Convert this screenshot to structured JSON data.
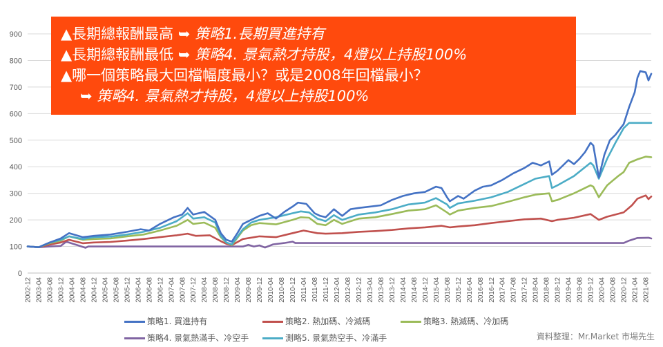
{
  "banner": {
    "line1_lead": "▲長期總報酬最高 ➥ ",
    "line1_hl": "策略1.長期買進持有",
    "line2_lead": "▲長期總報酬最低 ➥ ",
    "line2_hl": "策略4. 景氣熱才持股，4燈以上持股100%",
    "line3": "▲哪一個策略最大回檔幅度最小？或是2008年回檔最小？",
    "line4_arrow": "➥ ",
    "line4_hl": "策略4. 景氣熱才持股，4燈以上持股100%"
  },
  "source": "資料整理：Mr.Market 市場先生",
  "chart_data": {
    "type": "line",
    "ylim": [
      0,
      900
    ],
    "yticks": [
      0,
      100,
      200,
      300,
      400,
      500,
      600,
      700,
      800,
      900
    ],
    "grid": true,
    "xlim": [
      "2002-12",
      "2021-10"
    ],
    "x_tick_labels": [
      "2002-12",
      "2003-04",
      "2003-08",
      "2003-12",
      "2004-04",
      "2004-08",
      "2004-12",
      "2005-04",
      "2005-08",
      "2005-12",
      "2006-04",
      "2006-08",
      "2006-12",
      "2007-04",
      "2007-08",
      "2007-12",
      "2008-04",
      "2008-08",
      "2008-12",
      "2009-04",
      "2009-08",
      "2009-12",
      "2010-04",
      "2010-08",
      "2010-12",
      "2011-04",
      "2011-08",
      "2011-12",
      "2012-04",
      "2012-08",
      "2012-12",
      "2013-04",
      "2013-08",
      "2013-12",
      "2014-04",
      "2014-08",
      "2014-12",
      "2015-04",
      "2015-08",
      "2015-12",
      "2016-04",
      "2016-08",
      "2016-12",
      "2017-04",
      "2017-08",
      "2017-12",
      "2018-04",
      "2018-08",
      "2018-12",
      "2019-04",
      "2019-08",
      "2019-12",
      "2020-04",
      "2020-08",
      "2020-12",
      "2021-04",
      "2021-08"
    ],
    "legend_position": "bottom",
    "series": [
      {
        "name": "策略1. 買進持有",
        "color": "#4472C4",
        "points": [
          [
            "2002-12",
            100
          ],
          [
            "2003-04",
            97
          ],
          [
            "2003-08",
            115
          ],
          [
            "2003-12",
            130
          ],
          [
            "2004-03",
            150
          ],
          [
            "2004-08",
            135
          ],
          [
            "2004-12",
            140
          ],
          [
            "2005-06",
            145
          ],
          [
            "2005-12",
            155
          ],
          [
            "2006-05",
            165
          ],
          [
            "2006-08",
            160
          ],
          [
            "2006-12",
            185
          ],
          [
            "2007-05",
            210
          ],
          [
            "2007-08",
            220
          ],
          [
            "2007-10",
            245
          ],
          [
            "2007-12",
            220
          ],
          [
            "2008-04",
            230
          ],
          [
            "2008-08",
            200
          ],
          [
            "2008-10",
            150
          ],
          [
            "2008-12",
            125
          ],
          [
            "2009-02",
            118
          ],
          [
            "2009-04",
            150
          ],
          [
            "2009-06",
            185
          ],
          [
            "2009-09",
            200
          ],
          [
            "2009-12",
            215
          ],
          [
            "2010-03",
            225
          ],
          [
            "2010-06",
            205
          ],
          [
            "2010-09",
            230
          ],
          [
            "2010-12",
            250
          ],
          [
            "2011-02",
            265
          ],
          [
            "2011-05",
            260
          ],
          [
            "2011-08",
            225
          ],
          [
            "2011-10",
            215
          ],
          [
            "2011-12",
            210
          ],
          [
            "2012-03",
            240
          ],
          [
            "2012-06",
            215
          ],
          [
            "2012-09",
            240
          ],
          [
            "2012-12",
            245
          ],
          [
            "2013-04",
            250
          ],
          [
            "2013-08",
            255
          ],
          [
            "2013-12",
            275
          ],
          [
            "2014-04",
            290
          ],
          [
            "2014-08",
            300
          ],
          [
            "2014-12",
            305
          ],
          [
            "2015-04",
            325
          ],
          [
            "2015-06",
            320
          ],
          [
            "2015-08",
            285
          ],
          [
            "2015-09",
            270
          ],
          [
            "2015-12",
            290
          ],
          [
            "2016-02",
            280
          ],
          [
            "2016-06",
            310
          ],
          [
            "2016-09",
            325
          ],
          [
            "2016-12",
            330
          ],
          [
            "2017-04",
            350
          ],
          [
            "2017-08",
            375
          ],
          [
            "2017-12",
            395
          ],
          [
            "2018-03",
            415
          ],
          [
            "2018-06",
            405
          ],
          [
            "2018-09",
            420
          ],
          [
            "2018-10",
            370
          ],
          [
            "2018-12",
            385
          ],
          [
            "2019-04",
            425
          ],
          [
            "2019-06",
            410
          ],
          [
            "2019-08",
            430
          ],
          [
            "2019-10",
            455
          ],
          [
            "2019-12",
            490
          ],
          [
            "2020-01",
            480
          ],
          [
            "2020-03",
            360
          ],
          [
            "2020-05",
            445
          ],
          [
            "2020-07",
            500
          ],
          [
            "2020-09",
            520
          ],
          [
            "2020-12",
            560
          ],
          [
            "2021-02",
            625
          ],
          [
            "2021-04",
            680
          ],
          [
            "2021-05",
            735
          ],
          [
            "2021-06",
            760
          ],
          [
            "2021-08",
            755
          ],
          [
            "2021-09",
            725
          ],
          [
            "2021-10",
            750
          ]
        ]
      },
      {
        "name": "策略2. 熱加碼、冷減碼",
        "color": "#C0504D",
        "points": [
          [
            "2002-12",
            100
          ],
          [
            "2003-04",
            97
          ],
          [
            "2003-08",
            107
          ],
          [
            "2003-12",
            115
          ],
          [
            "2004-03",
            125
          ],
          [
            "2004-08",
            112
          ],
          [
            "2004-12",
            115
          ],
          [
            "2005-06",
            117
          ],
          [
            "2005-12",
            122
          ],
          [
            "2006-06",
            128
          ],
          [
            "2006-12",
            135
          ],
          [
            "2007-06",
            142
          ],
          [
            "2007-10",
            148
          ],
          [
            "2008-01",
            140
          ],
          [
            "2008-06",
            142
          ],
          [
            "2008-10",
            120
          ],
          [
            "2008-12",
            110
          ],
          [
            "2009-02",
            105
          ],
          [
            "2009-06",
            128
          ],
          [
            "2009-12",
            138
          ],
          [
            "2010-06",
            135
          ],
          [
            "2010-12",
            150
          ],
          [
            "2011-04",
            160
          ],
          [
            "2011-09",
            150
          ],
          [
            "2011-12",
            148
          ],
          [
            "2012-06",
            150
          ],
          [
            "2012-12",
            155
          ],
          [
            "2013-06",
            158
          ],
          [
            "2013-12",
            162
          ],
          [
            "2014-06",
            168
          ],
          [
            "2014-12",
            172
          ],
          [
            "2015-06",
            178
          ],
          [
            "2015-09",
            172
          ],
          [
            "2015-12",
            175
          ],
          [
            "2016-06",
            180
          ],
          [
            "2016-12",
            188
          ],
          [
            "2017-06",
            195
          ],
          [
            "2017-12",
            202
          ],
          [
            "2018-06",
            205
          ],
          [
            "2018-10",
            195
          ],
          [
            "2018-12",
            200
          ],
          [
            "2019-06",
            208
          ],
          [
            "2019-12",
            222
          ],
          [
            "2020-03",
            200
          ],
          [
            "2020-06",
            212
          ],
          [
            "2020-12",
            228
          ],
          [
            "2021-03",
            255
          ],
          [
            "2021-05",
            280
          ],
          [
            "2021-08",
            292
          ],
          [
            "2021-09",
            278
          ],
          [
            "2021-10",
            288
          ]
        ]
      },
      {
        "name": "策略3. 熱減碼、冷加碼",
        "color": "#9BBB59",
        "points": [
          [
            "2002-12",
            100
          ],
          [
            "2003-04",
            97
          ],
          [
            "2003-08",
            112
          ],
          [
            "2003-12",
            122
          ],
          [
            "2004-03",
            138
          ],
          [
            "2004-08",
            125
          ],
          [
            "2004-12",
            128
          ],
          [
            "2005-06",
            130
          ],
          [
            "2005-12",
            138
          ],
          [
            "2006-06",
            145
          ],
          [
            "2006-12",
            160
          ],
          [
            "2007-06",
            178
          ],
          [
            "2007-10",
            200
          ],
          [
            "2007-12",
            185
          ],
          [
            "2008-04",
            190
          ],
          [
            "2008-08",
            170
          ],
          [
            "2008-10",
            135
          ],
          [
            "2008-12",
            115
          ],
          [
            "2009-02",
            105
          ],
          [
            "2009-06",
            160
          ],
          [
            "2009-09",
            180
          ],
          [
            "2009-12",
            188
          ],
          [
            "2010-06",
            183
          ],
          [
            "2010-12",
            200
          ],
          [
            "2011-03",
            210
          ],
          [
            "2011-06",
            208
          ],
          [
            "2011-09",
            185
          ],
          [
            "2011-12",
            180
          ],
          [
            "2012-03",
            200
          ],
          [
            "2012-06",
            185
          ],
          [
            "2012-12",
            205
          ],
          [
            "2013-06",
            210
          ],
          [
            "2013-12",
            222
          ],
          [
            "2014-06",
            235
          ],
          [
            "2014-12",
            240
          ],
          [
            "2015-04",
            255
          ],
          [
            "2015-08",
            228
          ],
          [
            "2015-09",
            220
          ],
          [
            "2015-12",
            235
          ],
          [
            "2016-06",
            245
          ],
          [
            "2016-12",
            252
          ],
          [
            "2017-06",
            268
          ],
          [
            "2017-12",
            285
          ],
          [
            "2018-04",
            295
          ],
          [
            "2018-09",
            300
          ],
          [
            "2018-10",
            270
          ],
          [
            "2018-12",
            275
          ],
          [
            "2019-06",
            300
          ],
          [
            "2019-12",
            330
          ],
          [
            "2020-01",
            325
          ],
          [
            "2020-03",
            285
          ],
          [
            "2020-06",
            330
          ],
          [
            "2020-10",
            365
          ],
          [
            "2020-12",
            380
          ],
          [
            "2021-02",
            415
          ],
          [
            "2021-05",
            428
          ],
          [
            "2021-08",
            438
          ],
          [
            "2021-10",
            436
          ]
        ]
      },
      {
        "name": "策略4. 景氣熱滿手、冷空手",
        "color": "#8064A2",
        "points": [
          [
            "2002-12",
            100
          ],
          [
            "2003-04",
            97
          ],
          [
            "2003-08",
            100
          ],
          [
            "2003-12",
            102
          ],
          [
            "2004-02",
            118
          ],
          [
            "2004-06",
            105
          ],
          [
            "2004-09",
            95
          ],
          [
            "2004-10",
            100
          ],
          [
            "2009-06",
            100
          ],
          [
            "2009-08",
            106
          ],
          [
            "2009-10",
            100
          ],
          [
            "2009-12",
            104
          ],
          [
            "2010-02",
            96
          ],
          [
            "2010-05",
            108
          ],
          [
            "2010-09",
            113
          ],
          [
            "2010-12",
            118
          ],
          [
            "2011-01",
            113
          ],
          [
            "2020-12",
            113
          ],
          [
            "2021-02",
            122
          ],
          [
            "2021-05",
            132
          ],
          [
            "2021-09",
            133
          ],
          [
            "2021-10",
            130
          ]
        ]
      },
      {
        "name": "測略5. 景氣熱空手、冷滿手",
        "color": "#4BACC6",
        "points": [
          [
            "2002-12",
            100
          ],
          [
            "2003-04",
            97
          ],
          [
            "2003-08",
            115
          ],
          [
            "2003-12",
            125
          ],
          [
            "2004-03",
            138
          ],
          [
            "2004-08",
            128
          ],
          [
            "2004-12",
            135
          ],
          [
            "2005-06",
            137
          ],
          [
            "2005-12",
            145
          ],
          [
            "2006-06",
            155
          ],
          [
            "2006-12",
            170
          ],
          [
            "2007-06",
            195
          ],
          [
            "2007-10",
            225
          ],
          [
            "2007-12",
            205
          ],
          [
            "2008-04",
            210
          ],
          [
            "2008-08",
            190
          ],
          [
            "2008-10",
            140
          ],
          [
            "2008-12",
            115
          ],
          [
            "2009-02",
            108
          ],
          [
            "2009-06",
            165
          ],
          [
            "2009-09",
            190
          ],
          [
            "2009-12",
            200
          ],
          [
            "2010-06",
            210
          ],
          [
            "2010-12",
            225
          ],
          [
            "2011-03",
            232
          ],
          [
            "2011-06",
            228
          ],
          [
            "2011-09",
            205
          ],
          [
            "2011-12",
            195
          ],
          [
            "2012-03",
            218
          ],
          [
            "2012-06",
            200
          ],
          [
            "2012-12",
            220
          ],
          [
            "2013-06",
            228
          ],
          [
            "2013-12",
            240
          ],
          [
            "2014-06",
            258
          ],
          [
            "2014-12",
            265
          ],
          [
            "2015-04",
            282
          ],
          [
            "2015-08",
            258
          ],
          [
            "2015-09",
            245
          ],
          [
            "2015-12",
            262
          ],
          [
            "2016-06",
            272
          ],
          [
            "2016-12",
            285
          ],
          [
            "2017-06",
            305
          ],
          [
            "2017-12",
            335
          ],
          [
            "2018-04",
            355
          ],
          [
            "2018-09",
            365
          ],
          [
            "2018-10",
            320
          ],
          [
            "2018-12",
            330
          ],
          [
            "2019-06",
            365
          ],
          [
            "2019-12",
            415
          ],
          [
            "2020-01",
            405
          ],
          [
            "2020-03",
            355
          ],
          [
            "2020-06",
            430
          ],
          [
            "2020-09",
            490
          ],
          [
            "2020-12",
            545
          ],
          [
            "2021-02",
            565
          ],
          [
            "2021-10",
            565
          ]
        ]
      }
    ]
  }
}
